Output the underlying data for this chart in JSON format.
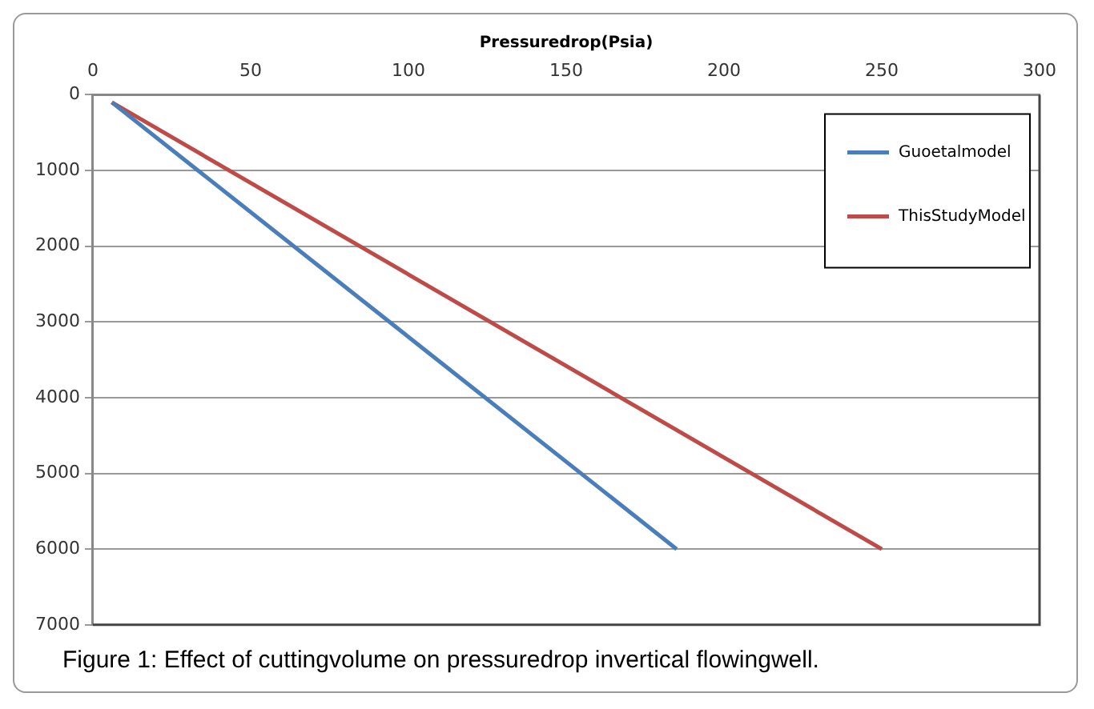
{
  "chart_data": {
    "type": "line",
    "xlabel": "Pressuredrop(Psia)",
    "xlim": [
      0,
      300
    ],
    "xticks": [
      0,
      50,
      100,
      150,
      200,
      250,
      300
    ],
    "ylim": [
      7000,
      0
    ],
    "yticks": [
      0,
      1000,
      2000,
      3000,
      4000,
      5000,
      6000,
      7000
    ],
    "grid": "y",
    "legend": "top right",
    "marker": "none",
    "line_style": "solid",
    "series": [
      {
        "name": "Guoetalmodel",
        "color": "#4a7ebb",
        "x": [
          6,
          185
        ],
        "values": [
          100,
          6000
        ]
      },
      {
        "name": "ThisStudyModel",
        "color": "#be4b48",
        "x": [
          6,
          250
        ],
        "values": [
          100,
          6000
        ]
      }
    ],
    "annotations": [
      "Figure 1: Effect of cuttingvolume on pressuredrop invertical flowingwell."
    ]
  }
}
